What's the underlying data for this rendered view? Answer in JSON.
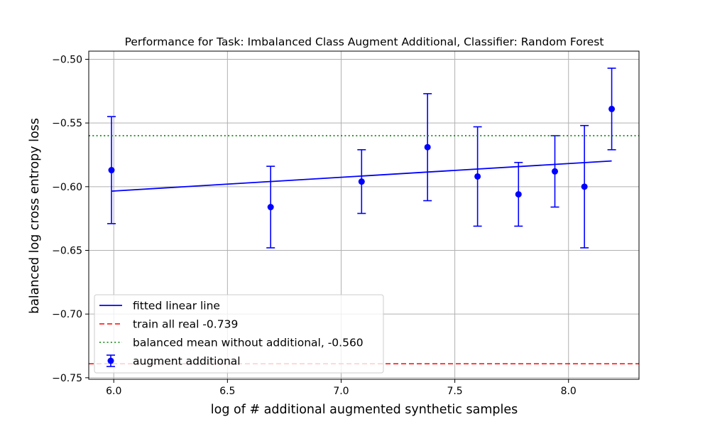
{
  "chart_data": {
    "type": "scatter",
    "title": "Performance for Task: Imbalanced Class Augment Additional, Classifier: Random Forest",
    "xlabel": "log of # additional augmented synthetic samples",
    "ylabel": "balanced log cross entropy loss",
    "xlim": [
      5.89,
      8.31
    ],
    "ylim": [
      -0.7512,
      -0.4936
    ],
    "xticks": [
      6.0,
      6.5,
      7.0,
      7.5,
      8.0
    ],
    "xtick_labels": [
      "6.0",
      "6.5",
      "7.0",
      "7.5",
      "8.0"
    ],
    "yticks": [
      -0.75,
      -0.7,
      -0.65,
      -0.6,
      -0.55,
      -0.5
    ],
    "ytick_labels": [
      "−0.75",
      "−0.70",
      "−0.65",
      "−0.60",
      "−0.55",
      "−0.50"
    ],
    "grid": true,
    "legend_position": "lower-left",
    "series": [
      {
        "name": "augment additional",
        "kind": "errorbar",
        "color": "#0000ff",
        "x": [
          5.99,
          6.69,
          7.09,
          7.38,
          7.6,
          7.78,
          7.94,
          8.07,
          8.19
        ],
        "y": [
          -0.587,
          -0.616,
          -0.596,
          -0.569,
          -0.592,
          -0.606,
          -0.588,
          -0.6,
          -0.539
        ],
        "yerr": [
          0.042,
          0.032,
          0.025,
          0.042,
          0.039,
          0.025,
          0.028,
          0.048,
          0.032
        ]
      },
      {
        "name": "fitted linear line",
        "kind": "line",
        "color": "#0000ff",
        "x": [
          5.99,
          8.19
        ],
        "y": [
          -0.6035,
          -0.5798
        ]
      },
      {
        "name": "train all real -0.739",
        "kind": "hline",
        "style": "dashed",
        "color": "#ff0000",
        "y": -0.739
      },
      {
        "name": "balanced mean without additional, -0.560",
        "kind": "hline",
        "style": "dotted",
        "color": "#008000",
        "y": -0.56
      }
    ]
  }
}
